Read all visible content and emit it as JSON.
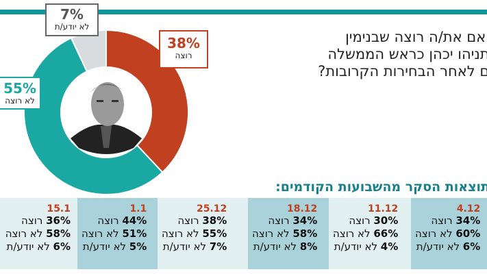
{
  "question": [
    "האם את/ה רוצה שבנימין",
    "נתניהו יכהן כראש הממשלה",
    "גם לאחר הבחירות הקרובות?"
  ],
  "chart_data": {
    "type": "pie",
    "title": "האם את/ה רוצה שבנימין נתניהו יכהן כראש הממשלה גם לאחר הבחירות הקרובות?",
    "slices": [
      {
        "label": "רוצה",
        "value": 38,
        "pct_label": "38%",
        "color": "#c0401f"
      },
      {
        "label": "לא רוצה",
        "value": 55,
        "pct_label": "55%",
        "color": "#1aa9a2"
      },
      {
        "label": "לא יודע/ת",
        "value": 7,
        "pct_label": "7%",
        "color": "#d9dcde"
      }
    ]
  },
  "history": {
    "title": "תוצאות הסקר מהשבועות הקודמים:",
    "columns": [
      {
        "date": "4.12",
        "want": "34%",
        "not_want": "60%",
        "dont_know": "6%"
      },
      {
        "date": "11.12",
        "want": "30%",
        "not_want": "66%",
        "dont_know": "4%"
      },
      {
        "date": "18.12",
        "want": "34%",
        "not_want": "58%",
        "dont_know": "8%"
      },
      {
        "date": "25.12",
        "want": "38%",
        "not_want": "55%",
        "dont_know": "7%"
      },
      {
        "date": "1.1",
        "want": "44%",
        "not_want": "51%",
        "dont_know": "5%"
      },
      {
        "date": "15.1",
        "want": "36%",
        "not_want": "58%",
        "dont_know": "6%"
      }
    ],
    "labels": {
      "want": "רוצה",
      "not_want": "לא רוצה",
      "dont_know": "לא יודע/ת"
    }
  }
}
